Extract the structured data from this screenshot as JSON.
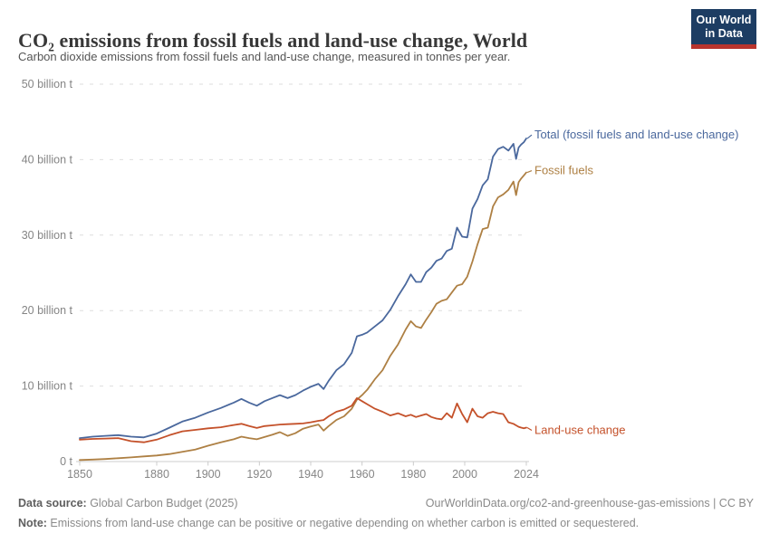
{
  "header": {
    "title": "CO₂ emissions from fossil fuels and land-use change, World",
    "subtitle": "Carbon dioxide emissions from fossil fuels and land-use change, measured in tonnes per year.",
    "logo": {
      "line1": "Our World",
      "line2": "in Data",
      "bg_color": "#1d3d63",
      "strip_color": "#b9342d"
    }
  },
  "footer": {
    "source_label": "Data source:",
    "source_value": " Global Carbon Budget (2025)",
    "link": "OurWorldinData.org/co2-and-greenhouse-gas-emissions | CC BY",
    "note_label": "Note:",
    "note_value": " Emissions from land-use change can be positive or negative depending on whether carbon is emitted or sequestered."
  },
  "chart_data": {
    "type": "line",
    "title": "CO₂ emissions from fossil fuels and land-use change, World",
    "unit": "tonnes of CO₂ per year",
    "xlabel": "",
    "ylabel": "",
    "xlim": [
      1850,
      2024
    ],
    "ylim": [
      0,
      50
    ],
    "grid": "horizontal-dashed",
    "legend_position": "end-of-line-labels",
    "x_ticks": [
      1850,
      1880,
      1900,
      1920,
      1940,
      1960,
      1980,
      2000,
      2024
    ],
    "y_ticks": [
      {
        "value": 0,
        "label": "0 t"
      },
      {
        "value": 10,
        "label": "10 billion t"
      },
      {
        "value": 20,
        "label": "20 billion t"
      },
      {
        "value": 30,
        "label": "30 billion t"
      },
      {
        "value": 40,
        "label": "40 billion t"
      },
      {
        "value": 50,
        "label": "50 billion t"
      }
    ],
    "x": [
      1850,
      1855,
      1860,
      1865,
      1870,
      1875,
      1880,
      1885,
      1890,
      1895,
      1900,
      1905,
      1910,
      1913,
      1916,
      1919,
      1922,
      1925,
      1928,
      1931,
      1934,
      1937,
      1940,
      1943,
      1945,
      1947,
      1950,
      1953,
      1956,
      1958,
      1960,
      1962,
      1965,
      1968,
      1971,
      1974,
      1977,
      1979,
      1981,
      1983,
      1985,
      1987,
      1989,
      1991,
      1993,
      1995,
      1997,
      1999,
      2001,
      2003,
      2005,
      2007,
      2009,
      2011,
      2013,
      2015,
      2017,
      2019,
      2020,
      2021,
      2022,
      2023,
      2024
    ],
    "series": [
      {
        "name": "Total (fossil fuels and land-use change)",
        "color": "#4a689d",
        "unit": "billion tonnes CO₂",
        "values": [
          3.1,
          3.3,
          3.4,
          3.5,
          3.3,
          3.2,
          3.7,
          4.5,
          5.3,
          5.8,
          6.5,
          7.1,
          7.8,
          8.3,
          7.8,
          7.4,
          8.0,
          8.4,
          8.8,
          8.4,
          8.8,
          9.4,
          9.9,
          10.3,
          9.6,
          10.7,
          12.1,
          12.9,
          14.4,
          16.6,
          16.8,
          17.1,
          17.9,
          18.7,
          20.1,
          21.9,
          23.5,
          24.8,
          23.8,
          23.8,
          25.1,
          25.7,
          26.6,
          26.9,
          27.9,
          28.2,
          31.0,
          29.8,
          29.7,
          33.5,
          34.8,
          36.6,
          37.4,
          40.4,
          41.4,
          41.7,
          41.2,
          42.1,
          40.1,
          41.6,
          42.0,
          42.3,
          42.8
        ]
      },
      {
        "name": "Fossil fuels",
        "color": "#ae8044",
        "unit": "billion tonnes CO₂",
        "values": [
          0.2,
          0.26,
          0.34,
          0.44,
          0.55,
          0.68,
          0.8,
          1.0,
          1.3,
          1.6,
          2.1,
          2.55,
          2.95,
          3.3,
          3.1,
          2.95,
          3.25,
          3.55,
          3.9,
          3.4,
          3.75,
          4.35,
          4.65,
          4.9,
          4.1,
          4.7,
          5.5,
          6.0,
          7.0,
          8.2,
          8.8,
          9.5,
          10.9,
          12.1,
          14.0,
          15.5,
          17.5,
          18.6,
          17.9,
          17.7,
          18.8,
          19.8,
          20.9,
          21.3,
          21.5,
          22.4,
          23.3,
          23.5,
          24.5,
          26.5,
          28.8,
          30.8,
          31.0,
          33.8,
          35.0,
          35.4,
          36.0,
          37.1,
          35.3,
          37.0,
          37.5,
          37.9,
          38.3
        ]
      },
      {
        "name": "Land-use change",
        "color": "#c4512a",
        "unit": "billion tonnes CO₂",
        "values": [
          2.9,
          3.0,
          3.05,
          3.1,
          2.7,
          2.55,
          2.9,
          3.5,
          4.0,
          4.2,
          4.4,
          4.55,
          4.85,
          5.0,
          4.7,
          4.45,
          4.7,
          4.8,
          4.9,
          4.95,
          5.0,
          5.05,
          5.2,
          5.4,
          5.5,
          6.0,
          6.6,
          6.9,
          7.4,
          8.4,
          8.0,
          7.6,
          7.0,
          6.6,
          6.1,
          6.4,
          6.0,
          6.2,
          5.9,
          6.1,
          6.3,
          5.9,
          5.7,
          5.6,
          6.4,
          5.8,
          7.7,
          6.3,
          5.2,
          7.0,
          6.0,
          5.8,
          6.4,
          6.6,
          6.4,
          6.3,
          5.2,
          5.0,
          4.8,
          4.6,
          4.5,
          4.4,
          4.5
        ]
      }
    ]
  }
}
